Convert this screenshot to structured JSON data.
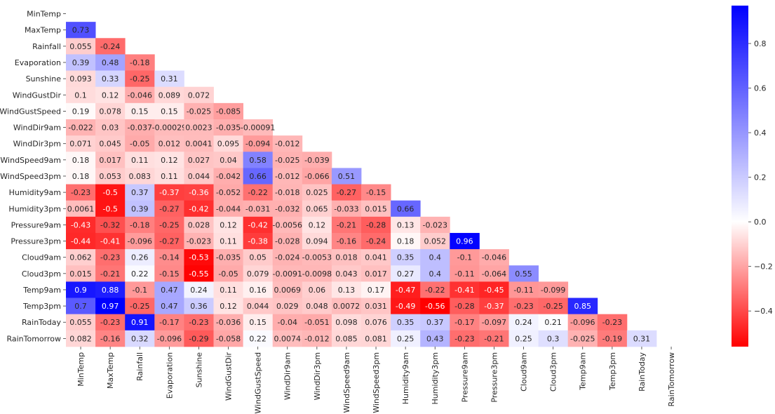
{
  "chart_data": {
    "type": "heatmap",
    "mask": "upper-triangle-including-diagonal",
    "variables": [
      "MinTemp",
      "MaxTemp",
      "Rainfall",
      "Evaporation",
      "Sunshine",
      "WindGustDir",
      "WindGustSpeed",
      "WindDir9am",
      "WindDir3pm",
      "WindSpeed9am",
      "WindSpeed3pm",
      "Humidity9am",
      "Humidity3pm",
      "Pressure9am",
      "Pressure3pm",
      "Cloud9am",
      "Cloud3pm",
      "Temp9am",
      "Temp3pm",
      "RainToday",
      "RainTomorrow"
    ],
    "values": [
      [],
      [
        "0.73"
      ],
      [
        "0.055",
        "-0.24"
      ],
      [
        "0.39",
        "0.48",
        "-0.18"
      ],
      [
        "0.093",
        "0.33",
        "-0.25",
        "0.31"
      ],
      [
        "0.1",
        "0.12",
        "-0.046",
        "0.089",
        "0.072"
      ],
      [
        "0.19",
        "0.078",
        "0.15",
        "0.15",
        "-0.025",
        "-0.085"
      ],
      [
        "-0.022",
        "0.03",
        "-0.037",
        "-0.00029",
        "0.0023",
        "-0.035",
        "-0.00091"
      ],
      [
        "0.071",
        "0.045",
        "-0.05",
        "0.012",
        "0.0041",
        "0.095",
        "-0.094",
        "-0.012"
      ],
      [
        "0.18",
        "0.017",
        "0.11",
        "0.12",
        "0.027",
        "0.04",
        "0.58",
        "-0.025",
        "-0.039"
      ],
      [
        "0.18",
        "0.053",
        "0.083",
        "0.11",
        "0.044",
        "-0.042",
        "0.66",
        "-0.012",
        "-0.066",
        "0.51"
      ],
      [
        "-0.23",
        "-0.5",
        "0.37",
        "-0.37",
        "-0.36",
        "-0.052",
        "-0.22",
        "-0.018",
        "0.025",
        "-0.27",
        "-0.15"
      ],
      [
        "0.0061",
        "-0.5",
        "0.39",
        "-0.27",
        "-0.42",
        "-0.044",
        "-0.031",
        "-0.032",
        "0.065",
        "-0.033",
        "0.015",
        "0.66"
      ],
      [
        "-0.43",
        "-0.32",
        "-0.18",
        "-0.25",
        "0.028",
        "0.12",
        "-0.42",
        "-0.0056",
        "0.12",
        "-0.21",
        "-0.28",
        "0.13",
        "-0.023"
      ],
      [
        "-0.44",
        "-0.41",
        "-0.096",
        "-0.27",
        "-0.023",
        "0.11",
        "-0.38",
        "-0.028",
        "0.094",
        "-0.16",
        "-0.24",
        "0.18",
        "0.052",
        "0.96"
      ],
      [
        "0.062",
        "-0.23",
        "0.26",
        "-0.14",
        "-0.53",
        "-0.035",
        "0.05",
        "-0.024",
        "-0.0053",
        "0.018",
        "0.041",
        "0.35",
        "0.4",
        "-0.1",
        "-0.046"
      ],
      [
        "0.015",
        "-0.21",
        "0.22",
        "-0.15",
        "-0.55",
        "-0.05",
        "0.079",
        "-0.0091",
        "-0.0098",
        "0.043",
        "0.017",
        "0.27",
        "0.4",
        "-0.11",
        "-0.064",
        "0.55"
      ],
      [
        "0.9",
        "0.88",
        "-0.1",
        "0.47",
        "0.24",
        "0.11",
        "0.16",
        "0.0069",
        "0.06",
        "0.13",
        "0.17",
        "-0.47",
        "-0.22",
        "-0.41",
        "-0.45",
        "-0.11",
        "-0.099"
      ],
      [
        "0.7",
        "0.97",
        "-0.25",
        "0.47",
        "0.36",
        "0.12",
        "0.044",
        "0.029",
        "0.048",
        "0.0072",
        "0.031",
        "-0.49",
        "-0.56",
        "-0.28",
        "-0.37",
        "-0.23",
        "-0.25",
        "0.85"
      ],
      [
        "0.055",
        "-0.23",
        "0.91",
        "-0.17",
        "-0.23",
        "-0.036",
        "0.15",
        "-0.04",
        "-0.051",
        "0.098",
        "0.076",
        "0.35",
        "0.37",
        "-0.17",
        "-0.097",
        "0.24",
        "0.21",
        "-0.096",
        "-0.23"
      ],
      [
        "0.082",
        "-0.16",
        "0.32",
        "-0.096",
        "-0.29",
        "-0.058",
        "0.22",
        "0.0074",
        "-0.012",
        "0.085",
        "0.081",
        "0.25",
        "0.43",
        "-0.23",
        "-0.21",
        "0.25",
        "0.3",
        "-0.025",
        "-0.19",
        "0.31"
      ]
    ],
    "colorscale": {
      "name": "bwr_r",
      "low_color": "#ff0000",
      "mid_color": "#ffffff",
      "high_color": "#0000ff",
      "vmin": -0.56,
      "vmax": 0.97
    },
    "colorbar": {
      "ticks": [
        "0.8",
        "0.6",
        "0.4",
        "0.2",
        "0.0",
        "−0.2",
        "−0.4"
      ],
      "tick_values": [
        0.8,
        0.6,
        0.4,
        0.2,
        0.0,
        -0.2,
        -0.4
      ]
    },
    "title": "",
    "xlabel": "",
    "ylabel": ""
  }
}
